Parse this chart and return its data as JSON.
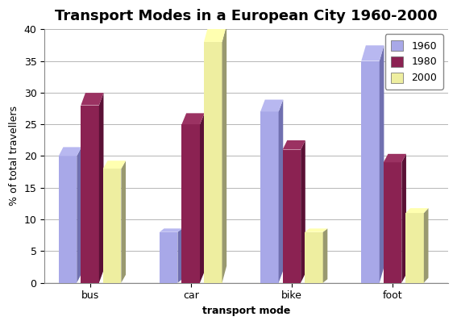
{
  "title": "Transport Modes in a European City 1960-2000",
  "xlabel": "transport mode",
  "ylabel": "% of total travellers",
  "categories": [
    "bus",
    "car",
    "bike",
    "foot"
  ],
  "years": [
    "1960",
    "1980",
    "2000"
  ],
  "values": {
    "1960": [
      20,
      8,
      27,
      35
    ],
    "1980": [
      28,
      25,
      21,
      19
    ],
    "2000": [
      18,
      38,
      8,
      11
    ]
  },
  "bar_colors": {
    "1960": "#A8A8E8",
    "1980": "#8B2252",
    "2000": "#EEEEA0"
  },
  "bar_side_colors": {
    "1960": "#7070B0",
    "1980": "#5A1035",
    "2000": "#999970"
  },
  "bar_top_colors": {
    "1960": "#B8B8F0",
    "1980": "#9B3262",
    "2000": "#FFFFB0"
  },
  "ylim": [
    0,
    40
  ],
  "yticks": [
    0,
    5,
    10,
    15,
    20,
    25,
    30,
    35,
    40
  ],
  "bar_width": 0.18,
  "depth": 0.06,
  "background_color": "#ffffff",
  "plot_bg_color": "#ffffff",
  "floor_color": "#999999",
  "title_fontsize": 13,
  "axis_label_fontsize": 9,
  "tick_fontsize": 9,
  "legend_fontsize": 9,
  "grid_color": "#aaaaaa"
}
